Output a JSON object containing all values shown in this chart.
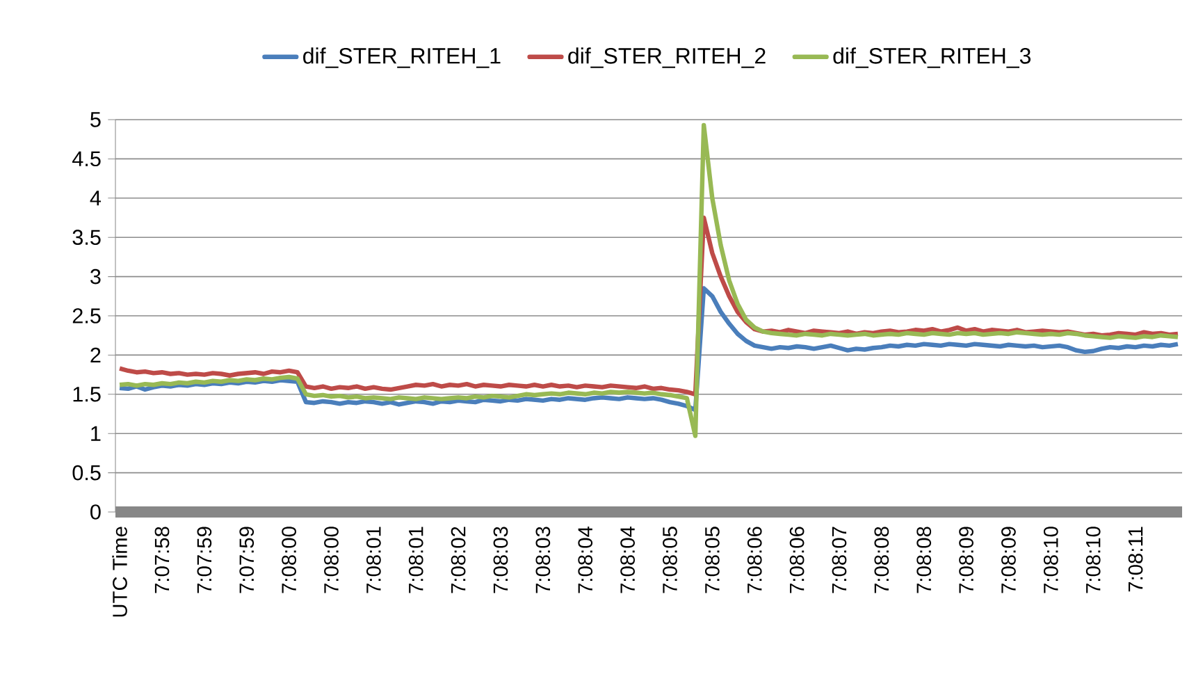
{
  "chart_data": {
    "type": "line",
    "categories": [
      "UTC Time",
      null,
      null,
      null,
      null,
      "7:07:58",
      null,
      null,
      null,
      null,
      "7:07:59",
      null,
      null,
      null,
      null,
      "7:07:59",
      null,
      null,
      null,
      null,
      "7:08:00",
      null,
      null,
      null,
      null,
      "7:08:00",
      null,
      null,
      null,
      null,
      "7:08:01",
      null,
      null,
      null,
      null,
      "7:08:01",
      null,
      null,
      null,
      null,
      "7:08:02",
      null,
      null,
      null,
      null,
      "7:08:03",
      null,
      null,
      null,
      null,
      "7:08:03",
      null,
      null,
      null,
      null,
      "7:08:04",
      null,
      null,
      null,
      null,
      "7:08:04",
      null,
      null,
      null,
      null,
      "7:08:05",
      null,
      null,
      null,
      null,
      "7:08:05",
      null,
      null,
      null,
      null,
      "7:08:06",
      null,
      null,
      null,
      null,
      "7:08:06",
      null,
      null,
      null,
      null,
      "7:08:07",
      null,
      null,
      null,
      null,
      "7:08:08",
      null,
      null,
      null,
      null,
      "7:08:08",
      null,
      null,
      null,
      null,
      "7:08:09",
      null,
      null,
      null,
      null,
      "7:08:09",
      null,
      null,
      null,
      null,
      "7:08:10",
      null,
      null,
      null,
      null,
      "7:08:10",
      null,
      null,
      null,
      null,
      "7:08:11",
      null,
      null,
      null,
      null,
      null
    ],
    "series": [
      {
        "name": "dif_STER_RITEH_1",
        "color": "#4a7ebb",
        "values": [
          1.58,
          1.57,
          1.6,
          1.56,
          1.59,
          1.61,
          1.6,
          1.62,
          1.61,
          1.63,
          1.62,
          1.64,
          1.63,
          1.65,
          1.64,
          1.66,
          1.65,
          1.67,
          1.66,
          1.68,
          1.67,
          1.66,
          1.4,
          1.39,
          1.41,
          1.4,
          1.38,
          1.4,
          1.39,
          1.41,
          1.4,
          1.38,
          1.4,
          1.37,
          1.39,
          1.41,
          1.4,
          1.38,
          1.41,
          1.4,
          1.42,
          1.41,
          1.4,
          1.43,
          1.42,
          1.41,
          1.43,
          1.42,
          1.44,
          1.43,
          1.42,
          1.44,
          1.43,
          1.45,
          1.44,
          1.43,
          1.45,
          1.46,
          1.45,
          1.44,
          1.46,
          1.45,
          1.44,
          1.45,
          1.43,
          1.4,
          1.38,
          1.35,
          1.3,
          2.85,
          2.75,
          2.55,
          2.4,
          2.27,
          2.18,
          2.12,
          2.1,
          2.08,
          2.1,
          2.09,
          2.11,
          2.1,
          2.08,
          2.1,
          2.12,
          2.09,
          2.06,
          2.08,
          2.07,
          2.09,
          2.1,
          2.12,
          2.11,
          2.13,
          2.12,
          2.14,
          2.13,
          2.12,
          2.14,
          2.13,
          2.12,
          2.14,
          2.13,
          2.12,
          2.11,
          2.13,
          2.12,
          2.11,
          2.12,
          2.1,
          2.11,
          2.12,
          2.1,
          2.06,
          2.04,
          2.05,
          2.08,
          2.1,
          2.09,
          2.11,
          2.1,
          2.12,
          2.11,
          2.13,
          2.12,
          2.14
        ]
      },
      {
        "name": "dif_STER_RITEH_2",
        "color": "#be4b48",
        "values": [
          1.83,
          1.8,
          1.78,
          1.79,
          1.77,
          1.78,
          1.76,
          1.77,
          1.75,
          1.76,
          1.75,
          1.77,
          1.76,
          1.74,
          1.76,
          1.77,
          1.78,
          1.76,
          1.79,
          1.78,
          1.8,
          1.78,
          1.6,
          1.58,
          1.6,
          1.57,
          1.59,
          1.58,
          1.6,
          1.57,
          1.59,
          1.57,
          1.56,
          1.58,
          1.6,
          1.62,
          1.61,
          1.63,
          1.6,
          1.62,
          1.61,
          1.63,
          1.6,
          1.62,
          1.61,
          1.6,
          1.62,
          1.61,
          1.6,
          1.62,
          1.6,
          1.62,
          1.6,
          1.61,
          1.59,
          1.61,
          1.6,
          1.59,
          1.61,
          1.6,
          1.59,
          1.58,
          1.6,
          1.57,
          1.58,
          1.56,
          1.55,
          1.53,
          1.5,
          3.75,
          3.3,
          3.0,
          2.75,
          2.55,
          2.42,
          2.33,
          2.3,
          2.31,
          2.29,
          2.32,
          2.3,
          2.28,
          2.31,
          2.3,
          2.29,
          2.28,
          2.3,
          2.27,
          2.29,
          2.28,
          2.3,
          2.31,
          2.29,
          2.3,
          2.32,
          2.31,
          2.33,
          2.3,
          2.32,
          2.35,
          2.31,
          2.33,
          2.3,
          2.32,
          2.31,
          2.3,
          2.32,
          2.29,
          2.3,
          2.31,
          2.3,
          2.29,
          2.3,
          2.28,
          2.26,
          2.27,
          2.25,
          2.26,
          2.28,
          2.27,
          2.26,
          2.29,
          2.27,
          2.28,
          2.26,
          2.27
        ]
      },
      {
        "name": "dif_STER_RITEH_3",
        "color": "#98b954",
        "values": [
          1.62,
          1.63,
          1.61,
          1.63,
          1.62,
          1.64,
          1.63,
          1.65,
          1.64,
          1.66,
          1.65,
          1.67,
          1.66,
          1.68,
          1.67,
          1.69,
          1.68,
          1.7,
          1.69,
          1.71,
          1.72,
          1.7,
          1.5,
          1.48,
          1.49,
          1.47,
          1.48,
          1.46,
          1.47,
          1.45,
          1.46,
          1.45,
          1.44,
          1.46,
          1.45,
          1.44,
          1.46,
          1.45,
          1.44,
          1.45,
          1.46,
          1.45,
          1.47,
          1.46,
          1.48,
          1.47,
          1.46,
          1.48,
          1.5,
          1.49,
          1.5,
          1.51,
          1.5,
          1.52,
          1.51,
          1.5,
          1.52,
          1.51,
          1.53,
          1.52,
          1.53,
          1.52,
          1.51,
          1.52,
          1.5,
          1.49,
          1.47,
          1.45,
          0.97,
          4.93,
          4.0,
          3.4,
          2.95,
          2.65,
          2.45,
          2.35,
          2.3,
          2.28,
          2.27,
          2.26,
          2.25,
          2.27,
          2.26,
          2.25,
          2.27,
          2.26,
          2.25,
          2.26,
          2.27,
          2.25,
          2.26,
          2.27,
          2.26,
          2.28,
          2.27,
          2.26,
          2.28,
          2.27,
          2.26,
          2.28,
          2.27,
          2.28,
          2.26,
          2.27,
          2.28,
          2.27,
          2.29,
          2.28,
          2.27,
          2.26,
          2.27,
          2.26,
          2.28,
          2.27,
          2.25,
          2.24,
          2.23,
          2.22,
          2.24,
          2.23,
          2.22,
          2.24,
          2.23,
          2.25,
          2.24,
          2.23
        ]
      }
    ],
    "ylim": [
      0,
      5
    ],
    "yticks": [
      0,
      0.5,
      1,
      1.5,
      2,
      2.5,
      3,
      3.5,
      4,
      4.5,
      5
    ],
    "grid": "y",
    "legend": "top",
    "marker": "none",
    "line_style": "solid"
  }
}
